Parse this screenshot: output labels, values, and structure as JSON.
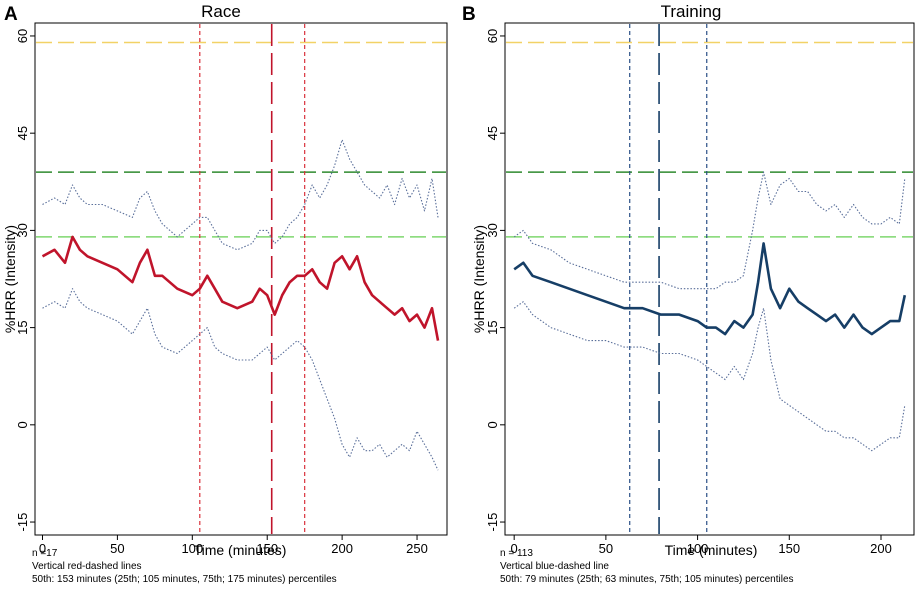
{
  "chart_data": [
    {
      "type": "line",
      "panel_label": "A",
      "title": "Race",
      "xlabel": "Time (minutes)",
      "ylabel": "%HRR  (Intensity)",
      "xlim": [
        -5,
        270
      ],
      "ylim": [
        -17,
        62
      ],
      "xticks": [
        0,
        50,
        100,
        150,
        200,
        250
      ],
      "yticks": [
        -15,
        0,
        15,
        30,
        45,
        60
      ],
      "xtick_labels": [
        "0",
        "50",
        "100",
        "150",
        "200",
        "250"
      ],
      "ytick_labels": [
        "-15",
        "0",
        "15",
        "30",
        "45",
        "60"
      ],
      "grid": false,
      "line_color": "#c0142b",
      "band_color": "#5a6f9a",
      "series": [
        {
          "name": "median",
          "x": [
            0,
            8,
            15,
            20,
            25,
            30,
            40,
            50,
            60,
            65,
            70,
            75,
            80,
            90,
            100,
            105,
            110,
            115,
            120,
            130,
            140,
            145,
            150,
            155,
            160,
            165,
            170,
            175,
            180,
            185,
            190,
            195,
            200,
            205,
            210,
            215,
            220,
            225,
            230,
            235,
            240,
            245,
            250,
            255,
            260,
            264
          ],
          "y": [
            26,
            27,
            25,
            29,
            27,
            26,
            25,
            24,
            22,
            25,
            27,
            23,
            23,
            21,
            20,
            21,
            23,
            21,
            19,
            18,
            19,
            21,
            20,
            17,
            20,
            22,
            23,
            23,
            24,
            22,
            21,
            25,
            26,
            24,
            26,
            22,
            20,
            19,
            18,
            17,
            18,
            16,
            17,
            15,
            18,
            13
          ]
        },
        {
          "name": "upper percentile",
          "x": [
            0,
            8,
            15,
            20,
            25,
            30,
            40,
            50,
            60,
            65,
            70,
            75,
            80,
            90,
            100,
            105,
            110,
            115,
            120,
            130,
            140,
            145,
            150,
            155,
            160,
            165,
            170,
            175,
            180,
            185,
            190,
            195,
            200,
            205,
            210,
            215,
            220,
            225,
            230,
            235,
            240,
            245,
            250,
            255,
            260,
            264
          ],
          "y": [
            34,
            35,
            34,
            37,
            35,
            34,
            34,
            33,
            32,
            35,
            36,
            33,
            31,
            29,
            31,
            32,
            32,
            30,
            28,
            27,
            28,
            30,
            30,
            28,
            29,
            31,
            32,
            34,
            37,
            35,
            37,
            40,
            44,
            41,
            39,
            37,
            36,
            35,
            37,
            34,
            38,
            35,
            37,
            33,
            38,
            32
          ]
        },
        {
          "name": "lower percentile",
          "x": [
            0,
            8,
            15,
            20,
            25,
            30,
            40,
            50,
            60,
            65,
            70,
            75,
            80,
            90,
            100,
            105,
            110,
            115,
            120,
            130,
            140,
            145,
            150,
            155,
            160,
            165,
            170,
            175,
            180,
            185,
            190,
            195,
            200,
            205,
            210,
            215,
            220,
            225,
            230,
            235,
            240,
            245,
            250,
            255,
            260,
            264
          ],
          "y": [
            18,
            19,
            18,
            21,
            19,
            18,
            17,
            16,
            14,
            16,
            18,
            14,
            12,
            11,
            13,
            14,
            15,
            12,
            11,
            10,
            10,
            11,
            12,
            10,
            11,
            12,
            13,
            12,
            10,
            7,
            4,
            1,
            -3,
            -5,
            -2,
            -4,
            -4,
            -3,
            -5,
            -4,
            -3,
            -4,
            -1,
            -3,
            -5,
            -7
          ]
        }
      ],
      "reference_lines": {
        "horizontal": [
          {
            "y": 59,
            "color": "#f2d266",
            "style": "dashed"
          },
          {
            "y": 39,
            "color": "#2e8a2e",
            "style": "dashed"
          },
          {
            "y": 29,
            "color": "#7fd86f",
            "style": "dashed"
          }
        ],
        "vertical": [
          {
            "x": 105,
            "color": "#d9323c",
            "style": "short-dash"
          },
          {
            "x": 153,
            "color": "#c0142b",
            "style": "long-dash"
          },
          {
            "x": 175,
            "color": "#d9323c",
            "style": "short-dash"
          }
        ]
      },
      "notes": [
        "n =17",
        "Vertical red-dashed lines",
        "50th: 153 minutes (25th; 105 minutes, 75th; 175 minutes) percentiles"
      ]
    },
    {
      "type": "line",
      "panel_label": "B",
      "title": "Training",
      "xlabel": "Time (minutes)",
      "ylabel": "%HRR  (Intensity)",
      "xlim": [
        -5,
        218
      ],
      "ylim": [
        -17,
        62
      ],
      "xticks": [
        0,
        50,
        100,
        150,
        200
      ],
      "yticks": [
        -15,
        0,
        15,
        30,
        45,
        60
      ],
      "xtick_labels": [
        "0",
        "50",
        "100",
        "150",
        "200"
      ],
      "ytick_labels": [
        "-15",
        "0",
        "15",
        "30",
        "45",
        "60"
      ],
      "grid": false,
      "line_color": "#163e66",
      "band_color": "#5a6f9a",
      "series": [
        {
          "name": "median",
          "x": [
            0,
            5,
            10,
            20,
            30,
            40,
            50,
            60,
            70,
            80,
            90,
            100,
            105,
            110,
            115,
            120,
            125,
            130,
            133,
            136,
            140,
            145,
            150,
            155,
            160,
            165,
            170,
            175,
            180,
            185,
            190,
            195,
            200,
            205,
            210,
            213
          ],
          "y": [
            24,
            25,
            23,
            22,
            21,
            20,
            19,
            18,
            18,
            17,
            17,
            16,
            15,
            15,
            14,
            16,
            15,
            17,
            22,
            28,
            21,
            18,
            21,
            19,
            18,
            17,
            16,
            17,
            15,
            17,
            15,
            14,
            15,
            16,
            16,
            20
          ]
        },
        {
          "name": "upper percentile",
          "x": [
            0,
            5,
            10,
            20,
            30,
            40,
            50,
            60,
            70,
            80,
            90,
            100,
            105,
            110,
            115,
            120,
            125,
            130,
            133,
            136,
            140,
            145,
            150,
            155,
            160,
            165,
            170,
            175,
            180,
            185,
            190,
            195,
            200,
            205,
            210,
            213
          ],
          "y": [
            29,
            30,
            28,
            27,
            25,
            24,
            23,
            22,
            22,
            22,
            21,
            21,
            21,
            21,
            22,
            22,
            23,
            30,
            35,
            39,
            34,
            37,
            38,
            36,
            36,
            34,
            33,
            34,
            32,
            34,
            32,
            31,
            31,
            32,
            31,
            38
          ]
        },
        {
          "name": "lower percentile",
          "x": [
            0,
            5,
            10,
            20,
            30,
            40,
            50,
            60,
            70,
            80,
            90,
            100,
            105,
            110,
            115,
            120,
            125,
            130,
            133,
            136,
            140,
            145,
            150,
            155,
            160,
            165,
            170,
            175,
            180,
            185,
            190,
            195,
            200,
            205,
            210,
            213
          ],
          "y": [
            18,
            19,
            17,
            15,
            14,
            13,
            13,
            12,
            12,
            11,
            11,
            10,
            9,
            8,
            7,
            9,
            7,
            11,
            15,
            18,
            10,
            4,
            3,
            2,
            1,
            0,
            -1,
            -1,
            -2,
            -2,
            -3,
            -4,
            -3,
            -2,
            -2,
            3
          ]
        }
      ],
      "reference_lines": {
        "horizontal": [
          {
            "y": 59,
            "color": "#f2d266",
            "style": "dashed"
          },
          {
            "y": 39,
            "color": "#2e8a2e",
            "style": "dashed"
          },
          {
            "y": 29,
            "color": "#7fd86f",
            "style": "dashed"
          }
        ],
        "vertical": [
          {
            "x": 63,
            "color": "#2a4f86",
            "style": "short-dash"
          },
          {
            "x": 79,
            "color": "#163e66",
            "style": "long-dash"
          },
          {
            "x": 105,
            "color": "#2a4f86",
            "style": "short-dash"
          }
        ]
      },
      "notes": [
        "n = 113",
        "Vertical blue-dashed line",
        "50th: 79 minutes (25th; 63 minutes, 75th; 105 minutes) percentiles"
      ]
    }
  ]
}
